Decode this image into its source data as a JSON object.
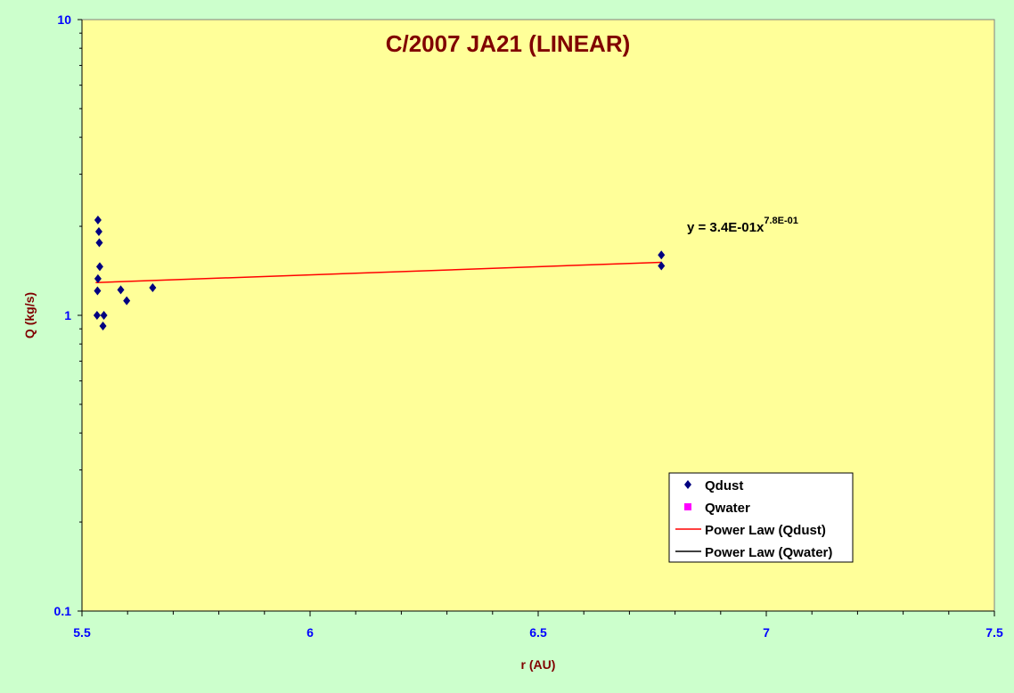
{
  "chart_data": {
    "type": "scatter",
    "title": "C/2007 JA21 (LINEAR)",
    "xlabel": "r (AU)",
    "ylabel": "Q (kg/s)",
    "xlim": [
      5.5,
      7.5
    ],
    "ylim": [
      0.1,
      10
    ],
    "yscale": "log",
    "x_ticks": [
      5.5,
      6,
      6.5,
      7,
      7.5
    ],
    "x_tick_labels": [
      "5.5",
      "6",
      "6.5",
      "7",
      "7.5"
    ],
    "y_ticks": [
      0.1,
      1,
      10
    ],
    "y_tick_labels": [
      "0.1",
      "1",
      "10"
    ],
    "grid": false,
    "legend_position": "bottom-right",
    "series": [
      {
        "name": "Qdust",
        "marker": "diamond",
        "color": "#000080",
        "points": [
          {
            "x": 5.535,
            "y": 2.1
          },
          {
            "x": 5.537,
            "y": 1.92
          },
          {
            "x": 5.538,
            "y": 1.76
          },
          {
            "x": 5.539,
            "y": 1.46
          },
          {
            "x": 5.535,
            "y": 1.33
          },
          {
            "x": 5.534,
            "y": 1.21
          },
          {
            "x": 5.533,
            "y": 1.0
          },
          {
            "x": 5.548,
            "y": 1.0
          },
          {
            "x": 5.546,
            "y": 0.92
          },
          {
            "x": 5.585,
            "y": 1.22
          },
          {
            "x": 5.598,
            "y": 1.12
          },
          {
            "x": 5.655,
            "y": 1.24
          },
          {
            "x": 6.77,
            "y": 1.6
          },
          {
            "x": 6.77,
            "y": 1.47
          }
        ]
      },
      {
        "name": "Qwater",
        "marker": "square",
        "color": "#ff00ff",
        "points": []
      }
    ],
    "trendlines": [
      {
        "name": "Power Law (Qdust)",
        "color": "#ff0000",
        "coefficient": 0.34,
        "exponent": 0.78,
        "x_range": [
          5.53,
          6.77
        ],
        "equation_text": "y = 3.4E-01x",
        "equation_exponent": "7.8E-01"
      },
      {
        "name": "Power Law (Qwater)",
        "color": "#000000"
      }
    ],
    "colors": {
      "background": "#ccffcc",
      "plot_area": "#ffff99",
      "title": "#800000",
      "axis_title": "#800000",
      "tick_label": "#0000ff"
    }
  }
}
